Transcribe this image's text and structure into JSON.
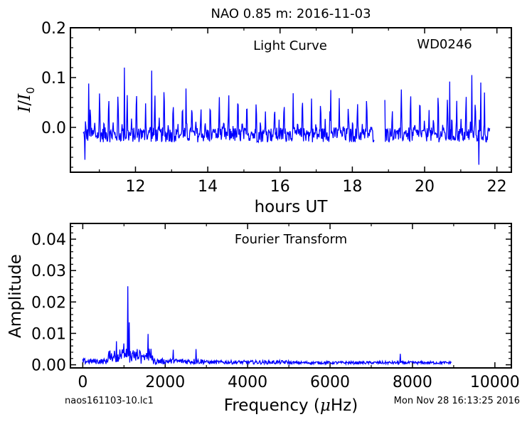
{
  "title": "NAO 0.85 m:  2016-11-03",
  "footer": {
    "left": "naos161103-10.lc1",
    "right": "Mon Nov 28 16:13:25 2016"
  },
  "colors": {
    "series": "#0000ff",
    "axes": "#000000"
  },
  "chart_data": [
    {
      "type": "line",
      "annotation_left": "Light Curve",
      "annotation_right": "WD0246",
      "xlabel": "hours UT",
      "ylabel": "I/I0",
      "xlim": [
        10.2,
        22.4
      ],
      "ylim": [
        -0.09,
        0.2
      ],
      "xticks": [
        12,
        14,
        16,
        18,
        20,
        22
      ],
      "xtick_labels": [
        "12",
        "14",
        "16",
        "18",
        "20",
        "22"
      ],
      "yticks": [
        0.0,
        0.1,
        0.2
      ],
      "ytick_labels": [
        "0.0",
        "0.1",
        "0.2"
      ],
      "segments": [
        {
          "x_start": 10.55,
          "x_end": 18.6,
          "baseline": -0.015
        },
        {
          "x_start": 18.9,
          "x_end": 21.8,
          "baseline": -0.015
        }
      ],
      "pulse_period_hours": 0.255,
      "amplitude_range": [
        -0.075,
        0.12
      ],
      "notable_points": [
        {
          "x": 10.6,
          "y": -0.065
        },
        {
          "x": 10.7,
          "y": 0.088
        },
        {
          "x": 11.7,
          "y": 0.12
        },
        {
          "x": 12.45,
          "y": 0.114
        },
        {
          "x": 13.4,
          "y": 0.078
        },
        {
          "x": 17.4,
          "y": 0.075
        },
        {
          "x": 18.9,
          "y": 0.055
        },
        {
          "x": 20.7,
          "y": 0.092
        },
        {
          "x": 21.3,
          "y": 0.105
        },
        {
          "x": 21.5,
          "y": -0.075
        },
        {
          "x": 21.55,
          "y": 0.09
        }
      ],
      "grid": false
    },
    {
      "type": "line",
      "annotation": "Fourier Transform",
      "xlabel_text": "Frequency (",
      "xlabel_mu": "μ",
      "xlabel_unit": "Hz)",
      "ylabel": "Amplitude",
      "xlim": [
        -300,
        10400
      ],
      "ylim": [
        -0.001,
        0.045
      ],
      "xticks": [
        0,
        2000,
        4000,
        6000,
        8000,
        10000
      ],
      "xtick_labels": [
        "0",
        "2000",
        "4000",
        "6000",
        "8000",
        "10000"
      ],
      "yticks": [
        0.0,
        0.01,
        0.02,
        0.03,
        0.04
      ],
      "ytick_labels": [
        "0.00",
        "0.01",
        "0.02",
        "0.03",
        "0.04"
      ],
      "x_range": [
        0,
        8950
      ],
      "peaks": [
        {
          "x": 90,
          "y": 0.0035
        },
        {
          "x": 150,
          "y": 0.005
        },
        {
          "x": 820,
          "y": 0.0075
        },
        {
          "x": 1000,
          "y": 0.0068
        },
        {
          "x": 1090,
          "y": 0.025
        },
        {
          "x": 1130,
          "y": 0.0135
        },
        {
          "x": 1170,
          "y": 0.016
        },
        {
          "x": 1230,
          "y": 0.006
        },
        {
          "x": 1580,
          "y": 0.0098
        },
        {
          "x": 2200,
          "y": 0.0048
        },
        {
          "x": 2750,
          "y": 0.005
        },
        {
          "x": 3450,
          "y": 0.0035
        },
        {
          "x": 7700,
          "y": 0.0035
        }
      ],
      "grid": false
    }
  ]
}
